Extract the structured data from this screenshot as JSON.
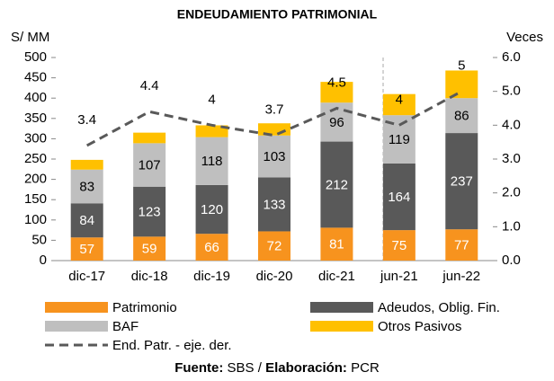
{
  "chart_data": {
    "type": "bar",
    "title": "ENDEUDAMIENTO PATRIMONIAL",
    "y_label": "S/ MM",
    "y2_label": "Veces",
    "categories": [
      "dic-17",
      "dic-18",
      "dic-19",
      "dic-20",
      "dic-21",
      "jun-21",
      "jun-22"
    ],
    "stacked": true,
    "series": [
      {
        "name": "Patrimonio",
        "color": "#f7931e",
        "label_color": "#ffffff",
        "data_labels": true,
        "values": [
          57,
          59,
          66,
          72,
          81,
          75,
          77
        ]
      },
      {
        "name": "Adeudos, Oblig. Fin.",
        "color": "#595959",
        "label_color": "#ffffff",
        "data_labels": true,
        "values": [
          84,
          123,
          120,
          133,
          212,
          164,
          237
        ]
      },
      {
        "name": "BAF",
        "color": "#bfbfbf",
        "label_color": "#000000",
        "data_labels": true,
        "values": [
          83,
          107,
          118,
          103,
          96,
          119,
          86
        ]
      },
      {
        "name": "Otros Pasivos",
        "color": "#ffc000",
        "label_color": "#000000",
        "data_labels": false,
        "values": [
          24,
          26,
          29,
          30,
          51,
          52,
          68
        ]
      },
      {
        "name": "End. Patr. - eje. der.",
        "type": "line",
        "axis": "y2",
        "color": "#595959",
        "dashed": true,
        "data_labels": true,
        "values": [
          3.4,
          4.4,
          4.0,
          3.7,
          4.5,
          4,
          5
        ]
      }
    ],
    "ylim": [
      0,
      500
    ],
    "yticks": [
      0,
      50,
      100,
      150,
      200,
      250,
      300,
      350,
      400,
      450,
      500
    ],
    "y2lim": [
      0,
      6
    ],
    "y2ticks": [
      {
        "value": 0,
        "label": "0.0"
      },
      {
        "value": 1,
        "label": "1.0"
      },
      {
        "value": 2,
        "label": "2.0"
      },
      {
        "value": 3,
        "label": "3.0"
      },
      {
        "value": 4,
        "label": "4.0"
      },
      {
        "value": 5,
        "label": "5.0"
      },
      {
        "value": 6,
        "label": "6.0"
      }
    ],
    "source": [
      "Fuente:",
      "SBS /",
      "Elaboración:",
      "PCR"
    ]
  }
}
